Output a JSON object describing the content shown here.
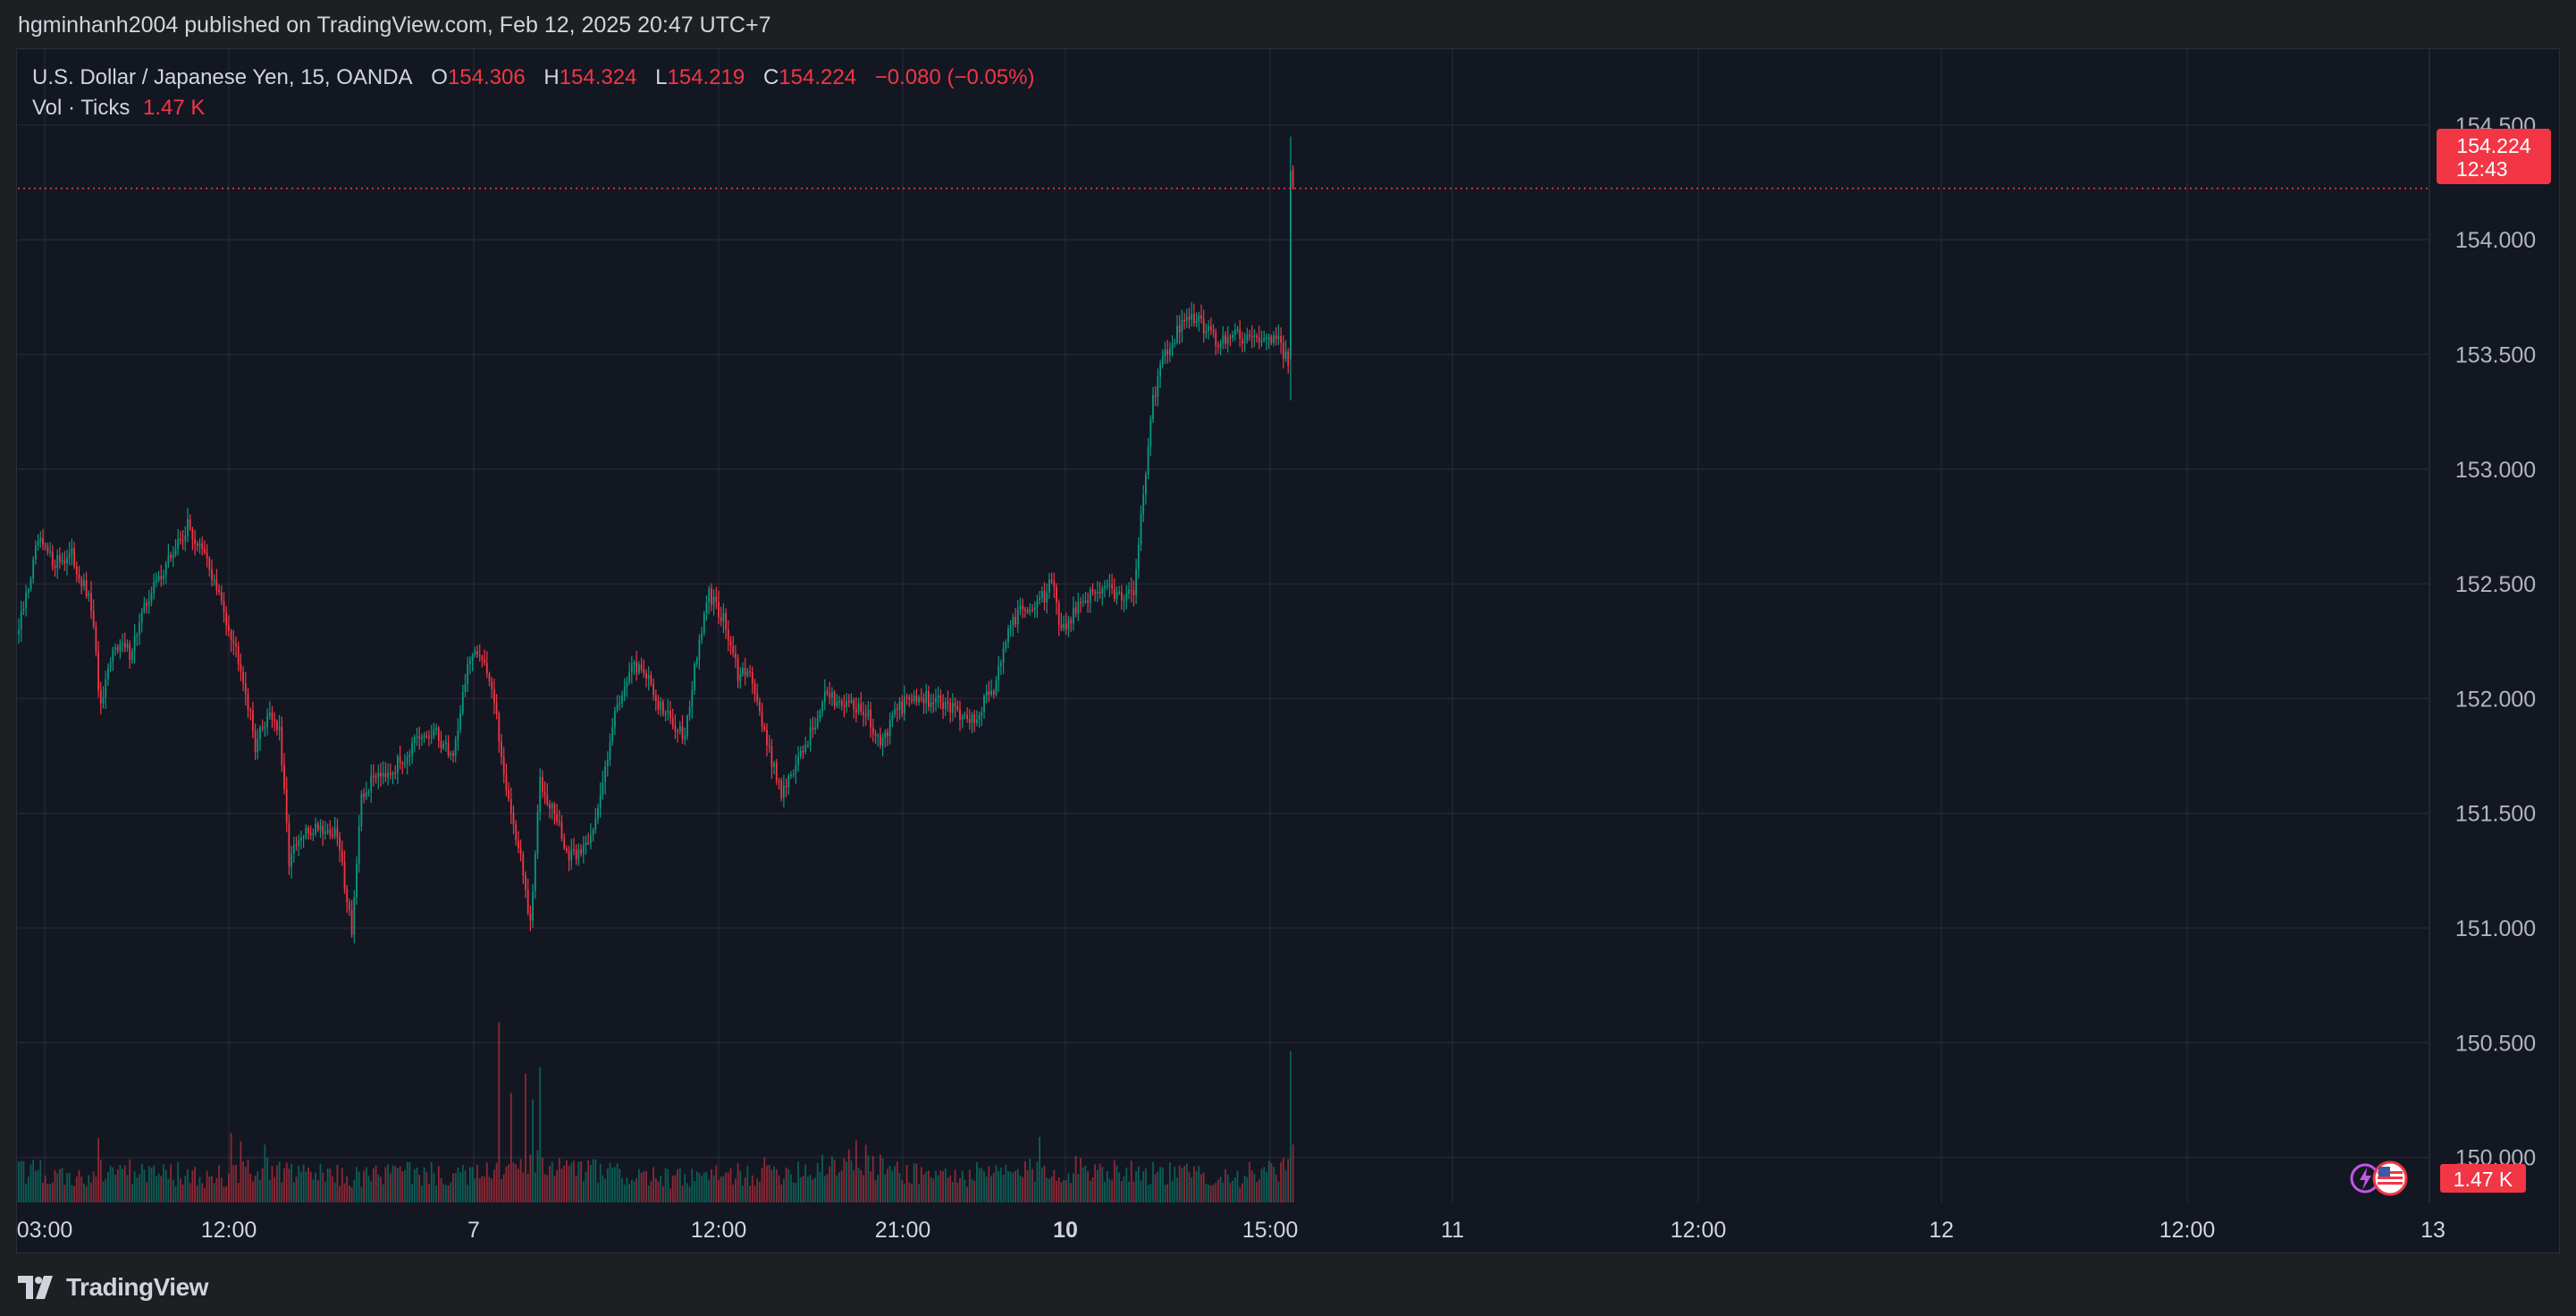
{
  "header": {
    "publisher": "hgminhanh2004 published on TradingView.com, Feb 12, 2025 20:47 UTC+7"
  },
  "legend": {
    "symbol": "U.S. Dollar / Japanese Yen, 15, OANDA",
    "open_label": "O",
    "open": "154.306",
    "high_label": "H",
    "high": "154.324",
    "low_label": "L",
    "low": "154.219",
    "close_label": "C",
    "close": "154.224",
    "change": "−0.080 (−0.05%)",
    "vol_label": "Vol · Ticks",
    "vol_value": "1.47 K"
  },
  "price_badge": {
    "price": "154.224",
    "countdown": "12:43"
  },
  "volume_badge": "1.47 K",
  "footer": {
    "brand": "TradingView"
  },
  "chart_data": {
    "type": "candlestick",
    "interval_minutes": 15,
    "y_ticks": [
      "154.500",
      "154.000",
      "153.500",
      "153.000",
      "152.500",
      "152.000",
      "151.500",
      "151.000",
      "150.500",
      "150.000"
    ],
    "ylim": [
      149.8,
      154.6
    ],
    "x_ticks": [
      "03:00",
      "12:00",
      "7",
      "12:00",
      "21:00",
      "10",
      "15:00",
      "11",
      "12:00",
      "12",
      "12:00",
      "13"
    ],
    "x_tick_bold": [
      false,
      false,
      false,
      false,
      false,
      true,
      false,
      false,
      false,
      false,
      false,
      false
    ],
    "last_price": 154.224,
    "up_color": "#089981",
    "down_color": "#f23645",
    "anchors": [
      {
        "bar": 0,
        "price": 152.3
      },
      {
        "bar": 8,
        "price": 152.68
      },
      {
        "bar": 14,
        "price": 152.6
      },
      {
        "bar": 22,
        "price": 152.62
      },
      {
        "bar": 30,
        "price": 152.4
      },
      {
        "bar": 34,
        "price": 151.95
      },
      {
        "bar": 40,
        "price": 152.25
      },
      {
        "bar": 46,
        "price": 152.2
      },
      {
        "bar": 54,
        "price": 152.45
      },
      {
        "bar": 62,
        "price": 152.6
      },
      {
        "bar": 70,
        "price": 152.75
      },
      {
        "bar": 78,
        "price": 152.6
      },
      {
        "bar": 86,
        "price": 152.35
      },
      {
        "bar": 92,
        "price": 152.15
      },
      {
        "bar": 98,
        "price": 151.8
      },
      {
        "bar": 104,
        "price": 151.95
      },
      {
        "bar": 108,
        "price": 151.85
      },
      {
        "bar": 112,
        "price": 151.3
      },
      {
        "bar": 118,
        "price": 151.4
      },
      {
        "bar": 124,
        "price": 151.45
      },
      {
        "bar": 132,
        "price": 151.4
      },
      {
        "bar": 138,
        "price": 151.0
      },
      {
        "bar": 142,
        "price": 151.55
      },
      {
        "bar": 148,
        "price": 151.68
      },
      {
        "bar": 156,
        "price": 151.7
      },
      {
        "bar": 164,
        "price": 151.8
      },
      {
        "bar": 172,
        "price": 151.85
      },
      {
        "bar": 180,
        "price": 151.75
      },
      {
        "bar": 186,
        "price": 152.15
      },
      {
        "bar": 192,
        "price": 152.2
      },
      {
        "bar": 196,
        "price": 152.05
      },
      {
        "bar": 200,
        "price": 151.75
      },
      {
        "bar": 204,
        "price": 151.5
      },
      {
        "bar": 208,
        "price": 151.3
      },
      {
        "bar": 212,
        "price": 151.0
      },
      {
        "bar": 216,
        "price": 151.65
      },
      {
        "bar": 222,
        "price": 151.5
      },
      {
        "bar": 228,
        "price": 151.3
      },
      {
        "bar": 234,
        "price": 151.35
      },
      {
        "bar": 240,
        "price": 151.5
      },
      {
        "bar": 246,
        "price": 151.9
      },
      {
        "bar": 252,
        "price": 152.1
      },
      {
        "bar": 258,
        "price": 152.15
      },
      {
        "bar": 264,
        "price": 152.0
      },
      {
        "bar": 270,
        "price": 151.9
      },
      {
        "bar": 276,
        "price": 151.85
      },
      {
        "bar": 282,
        "price": 152.25
      },
      {
        "bar": 286,
        "price": 152.45
      },
      {
        "bar": 292,
        "price": 152.35
      },
      {
        "bar": 298,
        "price": 152.1
      },
      {
        "bar": 304,
        "price": 152.1
      },
      {
        "bar": 310,
        "price": 151.8
      },
      {
        "bar": 316,
        "price": 151.6
      },
      {
        "bar": 322,
        "price": 151.7
      },
      {
        "bar": 328,
        "price": 151.85
      },
      {
        "bar": 334,
        "price": 152.0
      },
      {
        "bar": 340,
        "price": 152.0
      },
      {
        "bar": 346,
        "price": 151.98
      },
      {
        "bar": 352,
        "price": 151.92
      },
      {
        "bar": 358,
        "price": 151.8
      },
      {
        "bar": 364,
        "price": 151.95
      },
      {
        "bar": 370,
        "price": 152.0
      },
      {
        "bar": 376,
        "price": 152.0
      },
      {
        "bar": 382,
        "price": 151.98
      },
      {
        "bar": 388,
        "price": 151.95
      },
      {
        "bar": 394,
        "price": 151.9
      },
      {
        "bar": 398,
        "price": 151.95
      },
      {
        "bar": 404,
        "price": 152.05
      },
      {
        "bar": 410,
        "price": 152.3
      },
      {
        "bar": 416,
        "price": 152.4
      },
      {
        "bar": 422,
        "price": 152.4
      },
      {
        "bar": 428,
        "price": 152.5
      },
      {
        "bar": 432,
        "price": 152.3
      },
      {
        "bar": 438,
        "price": 152.38
      },
      {
        "bar": 444,
        "price": 152.45
      },
      {
        "bar": 450,
        "price": 152.5
      },
      {
        "bar": 456,
        "price": 152.45
      },
      {
        "bar": 462,
        "price": 152.48
      },
      {
        "bar": 466,
        "price": 152.9
      },
      {
        "bar": 470,
        "price": 153.3
      },
      {
        "bar": 474,
        "price": 153.5
      },
      {
        "bar": 480,
        "price": 153.6
      },
      {
        "bar": 486,
        "price": 153.68
      },
      {
        "bar": 492,
        "price": 153.6
      },
      {
        "bar": 498,
        "price": 153.55
      },
      {
        "bar": 504,
        "price": 153.6
      },
      {
        "bar": 510,
        "price": 153.55
      },
      {
        "bar": 516,
        "price": 153.6
      },
      {
        "bar": 522,
        "price": 153.55
      },
      {
        "bar": 526,
        "price": 153.48
      },
      {
        "bar": 527,
        "price": 154.3
      },
      {
        "bar": 528,
        "price": 154.224
      }
    ],
    "volume": {
      "base": [
        0.5,
        0.42,
        0.38,
        0.5,
        0.48,
        0.45,
        0.4,
        0.42,
        0.48,
        0.52,
        0.45,
        0.43,
        0.4,
        0.45,
        0.48,
        0.45,
        0.42,
        0.45,
        0.5,
        0.58,
        0.55,
        0.5,
        0.45,
        0.42,
        0.38,
        0.4,
        0.42,
        0.45,
        0.5,
        0.52,
        0.62,
        0.7,
        0.55,
        0.48,
        0.45,
        0.42,
        0.45,
        0.48,
        0.5,
        0.52,
        0.55,
        0.52,
        0.48,
        0.45,
        0.45,
        0.42,
        0.45,
        0.5
      ],
      "spikes": [
        {
          "bar": 33,
          "value": 1.0
        },
        {
          "bar": 88,
          "value": 1.08
        },
        {
          "bar": 92,
          "value": 0.95
        },
        {
          "bar": 102,
          "value": 0.9
        },
        {
          "bar": 199,
          "value": 2.8
        },
        {
          "bar": 204,
          "value": 1.7
        },
        {
          "bar": 210,
          "value": 2.0
        },
        {
          "bar": 213,
          "value": 1.6
        },
        {
          "bar": 216,
          "value": 2.1
        },
        {
          "bar": 423,
          "value": 1.02
        },
        {
          "bar": 527,
          "value": 2.35
        },
        {
          "bar": 528,
          "value": 0.9
        }
      ]
    }
  }
}
